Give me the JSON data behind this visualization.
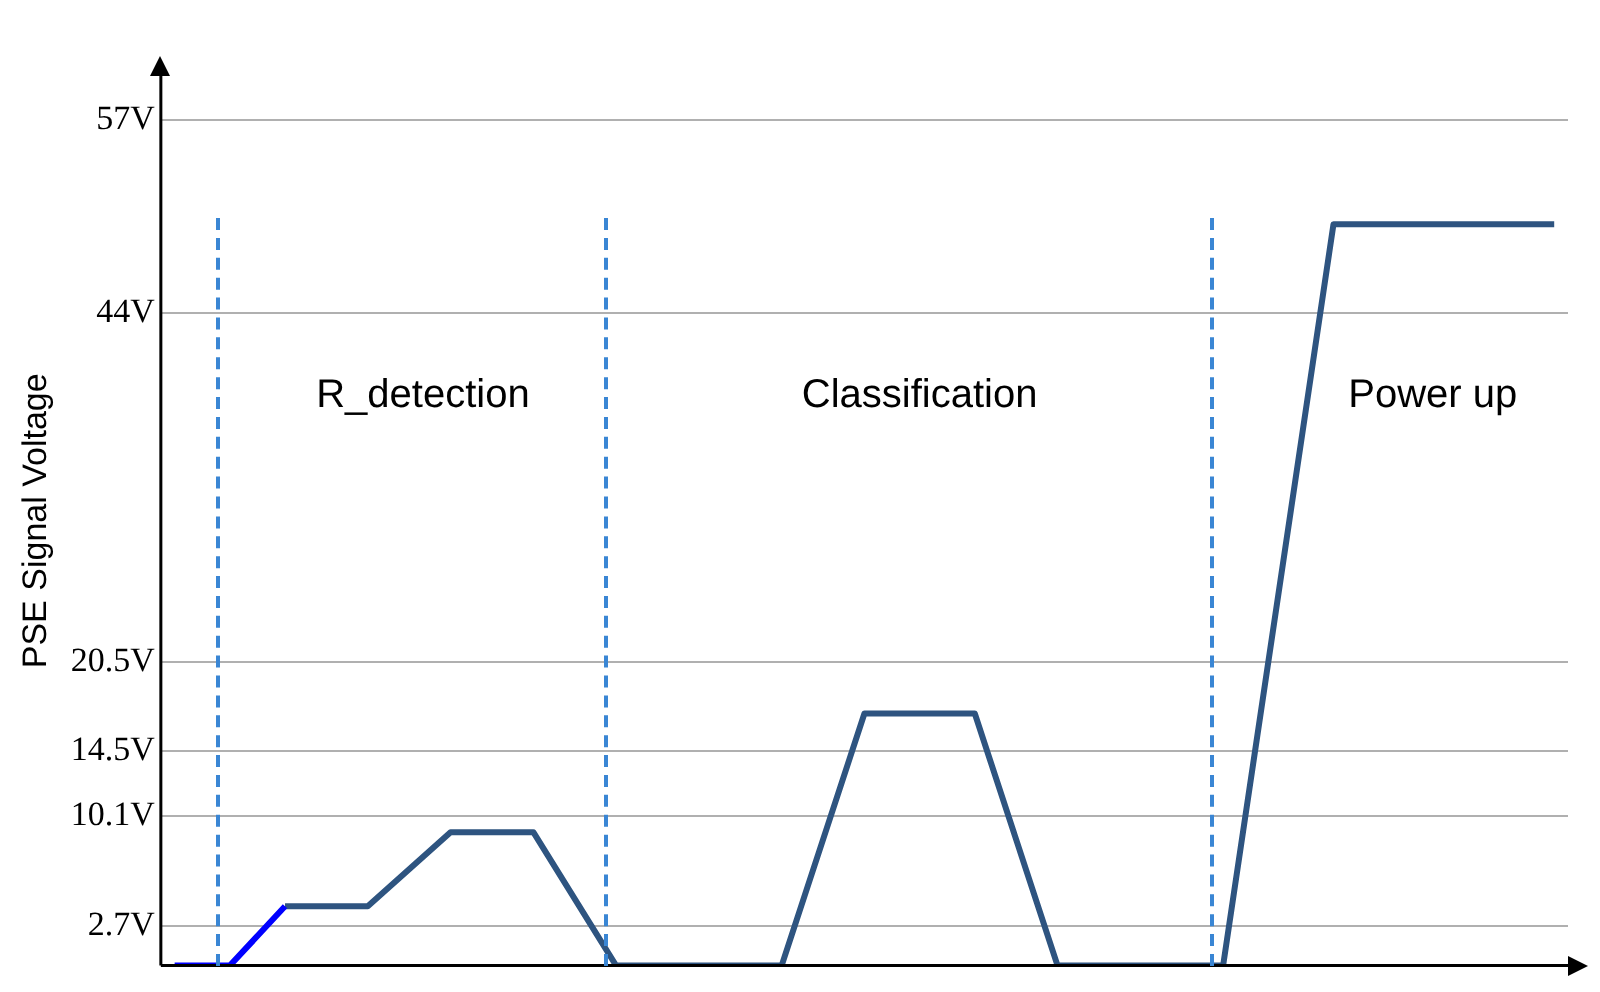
{
  "chart_data": {
    "type": "line",
    "ylabel": "PSE Signal Voltage",
    "categories": [
      null,
      null,
      null,
      null,
      null,
      null,
      null,
      null,
      null,
      null,
      null,
      null,
      null,
      null,
      null,
      null,
      null,
      null,
      null,
      null,
      null,
      null,
      null,
      null,
      null,
      null,
      null,
      null,
      null,
      null,
      null,
      null,
      null,
      null,
      null,
      null,
      null,
      null,
      null,
      null,
      null,
      null,
      null,
      null,
      null,
      null,
      null,
      null,
      null,
      null,
      null
    ],
    "ylim": [
      0,
      60
    ],
    "yticks": [
      {
        "value": 2.7,
        "label": "2.7V"
      },
      {
        "value": 10.1,
        "label": "10.1V"
      },
      {
        "value": 14.5,
        "label": "14.5V"
      },
      {
        "value": 20.5,
        "label": "20.5V"
      },
      {
        "value": 44,
        "label": "44V"
      },
      {
        "value": 57,
        "label": "57V"
      }
    ],
    "tick_labels": "y",
    "grid": "y",
    "legend": false,
    "marker": "none",
    "line_style": "solid",
    "series": [
      {
        "color": "#0000ff",
        "values": [
          0,
          null,
          0,
          null,
          4,
          null,
          null,
          null,
          null,
          null,
          null,
          null,
          null,
          null,
          null,
          null,
          null,
          null,
          null,
          null,
          null,
          null,
          null,
          null,
          null,
          null,
          null,
          null,
          null,
          null,
          null,
          null,
          null,
          null,
          null,
          null,
          null,
          null,
          null,
          null,
          null,
          null,
          null,
          null,
          null,
          null,
          null,
          null,
          null,
          null,
          null
        ]
      },
      {
        "color": "#2e5480",
        "values": [
          null,
          null,
          null,
          null,
          4,
          null,
          null,
          4,
          null,
          null,
          9,
          null,
          null,
          9,
          null,
          null,
          0,
          null,
          null,
          null,
          null,
          null,
          0,
          null,
          null,
          17,
          null,
          null,
          null,
          17,
          null,
          null,
          0,
          null,
          null,
          null,
          null,
          null,
          0,
          null,
          null,
          null,
          50,
          null,
          null,
          null,
          null,
          null,
          null,
          null,
          50
        ]
      }
    ],
    "annotations": [
      "R_detection",
      "Classification",
      "Power up"
    ]
  }
}
